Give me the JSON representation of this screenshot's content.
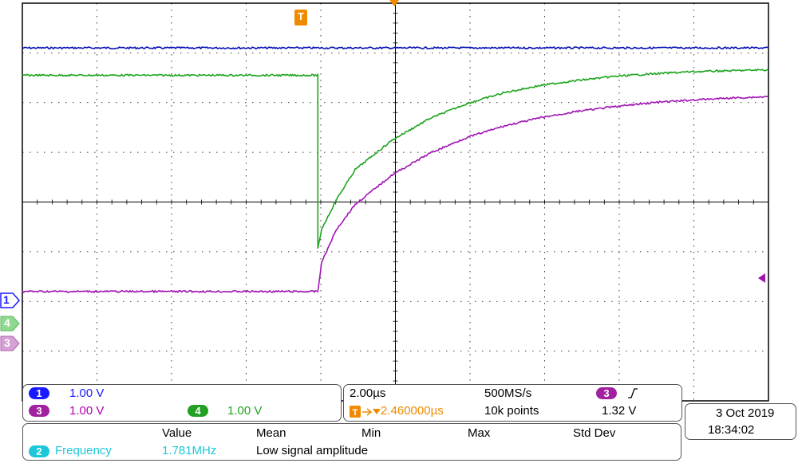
{
  "trigger_label": "T",
  "channels": [
    {
      "num": "1",
      "scale": "1.00 V",
      "color": "#1a1aff",
      "badge_color": "#1a1aff"
    },
    {
      "num": "3",
      "scale": "1.00 V",
      "color": "#b000b0",
      "badge_color": "#a020a0"
    },
    {
      "num": "4",
      "scale": "1.00 V",
      "color": "#1ea51e",
      "badge_color": "#22a022"
    }
  ],
  "ground_markers": [
    "1",
    "4",
    "3"
  ],
  "timebase": {
    "time_per_div": "2.00µs",
    "sample_rate": "500MS/s",
    "trigger_position": "2.460000µs",
    "record_length": "10k points",
    "trigger_channel": "3",
    "trigger_slope_icon": "rising-edge-icon",
    "trigger_level": "1.32 V"
  },
  "datetime": {
    "date": "3 Oct  2019",
    "time": "18:34:02"
  },
  "measurements": {
    "headers": [
      "Value",
      "Mean",
      "Min",
      "Max",
      "Std Dev"
    ],
    "rows": [
      {
        "source": "2",
        "name": "Frequency",
        "value": "1.781MHz",
        "note": "Low signal amplitude"
      }
    ]
  },
  "colors": {
    "ch1": "#0a14b4",
    "ch3": "#a014b4",
    "ch4": "#1ea51e",
    "trigger": "#f08a00",
    "grid": "#000000",
    "meas_accent": "#1cc8d8"
  },
  "chart_data": {
    "type": "line",
    "title": "",
    "xlabel": "",
    "ylabel": "",
    "x_unit": "µs",
    "y_unit": "div",
    "xlim": [
      -9.92,
      10.08
    ],
    "ylim": [
      -4,
      4
    ],
    "grid": true,
    "series": [
      {
        "name": "1",
        "x": [
          -9.92,
          10.08
        ],
        "y": [
          3.1,
          3.1
        ]
      },
      {
        "name": "4",
        "x": [
          -9.92,
          -2.0,
          -1.999,
          -1.9,
          -1.5,
          -1.0,
          0.0,
          1.0,
          2.0,
          3.0,
          4.0,
          5.0,
          6.0,
          7.0,
          8.0,
          9.0,
          10.08
        ],
        "y": [
          2.55,
          2.55,
          -0.95,
          -0.55,
          0.05,
          0.65,
          1.25,
          1.68,
          1.98,
          2.2,
          2.35,
          2.45,
          2.53,
          2.58,
          2.62,
          2.64,
          2.66
        ]
      },
      {
        "name": "3",
        "x": [
          -9.92,
          -2.0,
          -1.9,
          -1.5,
          -1.0,
          0.0,
          1.0,
          2.0,
          3.0,
          4.0,
          5.0,
          6.0,
          7.0,
          8.0,
          9.0,
          10.08
        ],
        "y": [
          -1.8,
          -1.8,
          -1.22,
          -0.55,
          -0.05,
          0.55,
          0.98,
          1.3,
          1.53,
          1.7,
          1.83,
          1.92,
          2.0,
          2.05,
          2.09,
          2.12
        ]
      }
    ]
  }
}
